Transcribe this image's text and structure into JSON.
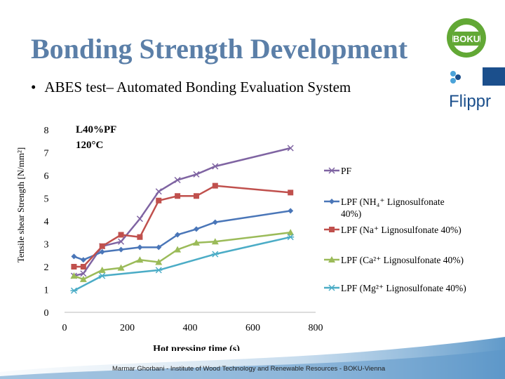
{
  "slide": {
    "title": "Bonding Strength Development",
    "bullet": "ABES test– Automated Bonding Evaluation System",
    "footer": "Marmar Ghorbani - Institute of Wood Technology and Renewable Resources - BOKU-Vienna",
    "logos": [
      "BOKU",
      "Flippr"
    ]
  },
  "colors": {
    "title": "#5b7fa8",
    "pf": "#7f64a2",
    "lpf_nh4": "#4a76b8",
    "lpf_na": "#c0504d",
    "lpf_ca": "#9bbb59",
    "lpf_mg": "#4bacc6"
  },
  "chart_data": {
    "type": "line",
    "annotation": [
      "L40%PF",
      "120°C"
    ],
    "xlabel": "Hot pressing time (s)",
    "ylabel": "Tensile shear Strength [N/mm²]",
    "xlim": [
      0,
      800
    ],
    "ylim": [
      0,
      8
    ],
    "xticks": [
      "0",
      "200",
      "400",
      "600",
      "800"
    ],
    "yticks": [
      "0",
      "1",
      "2",
      "3",
      "4",
      "5",
      "6",
      "7",
      "8"
    ],
    "grid": false,
    "legend_position": "right",
    "series": [
      {
        "name": "PF",
        "marker": "x",
        "color": "#7f64a2",
        "points": [
          [
            30,
            1.6
          ],
          [
            60,
            1.7
          ],
          [
            120,
            2.9
          ],
          [
            180,
            3.1
          ],
          [
            240,
            4.1
          ],
          [
            300,
            5.3
          ],
          [
            360,
            5.8
          ],
          [
            420,
            6.05
          ],
          [
            480,
            6.4
          ],
          [
            720,
            7.2
          ]
        ]
      },
      {
        "name": "LPF (NH₄⁺ Lignosulfonate 40%)",
        "marker": "diamond",
        "color": "#4a76b8",
        "points": [
          [
            30,
            2.45
          ],
          [
            60,
            2.3
          ],
          [
            120,
            2.65
          ],
          [
            180,
            2.75
          ],
          [
            240,
            2.85
          ],
          [
            300,
            2.85
          ],
          [
            360,
            3.4
          ],
          [
            420,
            3.65
          ],
          [
            480,
            3.95
          ],
          [
            720,
            4.45
          ]
        ]
      },
      {
        "name": "LPF (Na⁺ Lignosulfonate 40%)",
        "marker": "square",
        "color": "#c0504d",
        "points": [
          [
            30,
            2.0
          ],
          [
            60,
            2.0
          ],
          [
            120,
            2.9
          ],
          [
            180,
            3.4
          ],
          [
            240,
            3.3
          ],
          [
            300,
            4.9
          ],
          [
            360,
            5.1
          ],
          [
            420,
            5.1
          ],
          [
            480,
            5.55
          ],
          [
            720,
            5.25
          ]
        ]
      },
      {
        "name": "LPF (Ca²⁺ Lignosulfonate 40%)",
        "marker": "triangle",
        "color": "#9bbb59",
        "points": [
          [
            30,
            1.6
          ],
          [
            60,
            1.45
          ],
          [
            120,
            1.85
          ],
          [
            180,
            1.95
          ],
          [
            240,
            2.3
          ],
          [
            300,
            2.2
          ],
          [
            360,
            2.75
          ],
          [
            420,
            3.05
          ],
          [
            480,
            3.1
          ],
          [
            720,
            3.5
          ]
        ]
      },
      {
        "name": "LPF (Mg²⁺ Lignosulfonate 40%)",
        "marker": "asterisk",
        "color": "#4bacc6",
        "points": [
          [
            30,
            0.95
          ],
          [
            120,
            1.6
          ],
          [
            300,
            1.85
          ],
          [
            480,
            2.55
          ],
          [
            720,
            3.3
          ]
        ]
      }
    ]
  }
}
